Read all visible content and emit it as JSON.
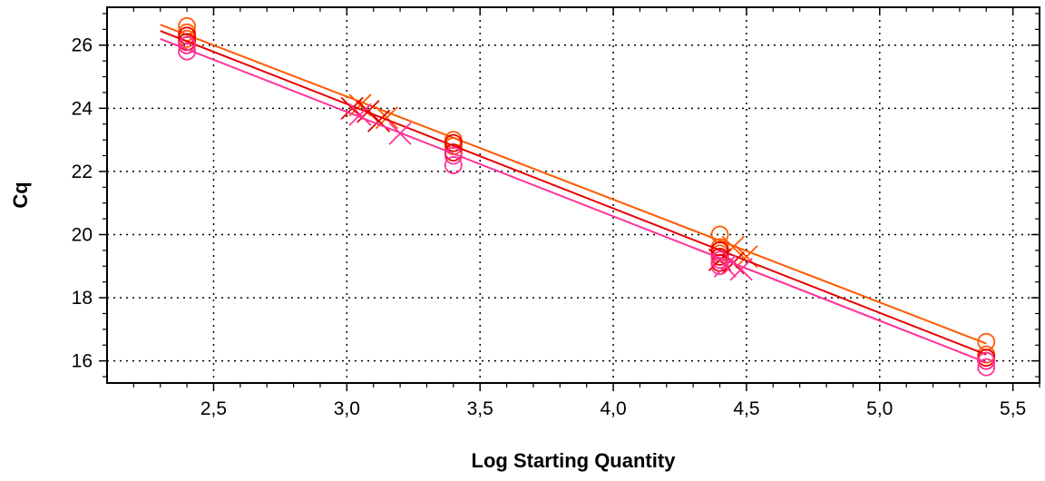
{
  "chart_data": {
    "type": "scatter",
    "title": "",
    "xlabel": "Log Starting Quantity",
    "ylabel": "Cq",
    "xlim": [
      2.1,
      5.6
    ],
    "ylim": [
      15.3,
      27.2
    ],
    "grid": true,
    "legend": "none",
    "x_ticks": [
      2.5,
      3.0,
      3.5,
      4.0,
      4.5,
      5.0,
      5.5
    ],
    "x_tick_labels": [
      "2,5",
      "3,0",
      "3,5",
      "4,0",
      "4,5",
      "5,0",
      "5,5"
    ],
    "y_ticks": [
      16,
      18,
      20,
      22,
      24,
      26
    ],
    "y_tick_labels": [
      "16",
      "18",
      "20",
      "22",
      "24",
      "26"
    ],
    "series": [
      {
        "color": "#ff5a00",
        "line": {
          "x": [
            2.3,
            5.4
          ],
          "y": [
            26.65,
            16.55
          ]
        },
        "standards": [
          [
            2.4,
            26.6
          ],
          [
            2.4,
            26.4
          ],
          [
            2.4,
            26.2
          ],
          [
            3.4,
            23.0
          ],
          [
            3.4,
            22.8
          ],
          [
            4.4,
            20.0
          ],
          [
            4.4,
            19.6
          ],
          [
            4.4,
            19.4
          ],
          [
            5.4,
            16.6
          ],
          [
            5.4,
            16.2
          ]
        ],
        "unknowns": [
          [
            3.05,
            24.1
          ],
          [
            3.15,
            23.7
          ],
          [
            4.45,
            19.6
          ],
          [
            4.5,
            19.3
          ]
        ]
      },
      {
        "color": "#e80000",
        "line": {
          "x": [
            2.3,
            5.4
          ],
          "y": [
            26.45,
            16.2
          ]
        },
        "standards": [
          [
            2.4,
            26.3
          ],
          [
            2.4,
            26.1
          ],
          [
            2.4,
            26.0
          ],
          [
            3.4,
            22.9
          ],
          [
            3.4,
            22.6
          ],
          [
            4.4,
            19.5
          ],
          [
            4.4,
            19.3
          ],
          [
            4.4,
            19.1
          ],
          [
            5.4,
            16.1
          ],
          [
            5.4,
            16.0
          ]
        ],
        "unknowns": [
          [
            3.02,
            24.0
          ],
          [
            3.08,
            23.9
          ],
          [
            3.12,
            23.6
          ],
          [
            4.4,
            19.2
          ],
          [
            4.45,
            19.1
          ]
        ]
      },
      {
        "color": "#ff3399",
        "line": {
          "x": [
            2.3,
            5.4
          ],
          "y": [
            26.2,
            15.95
          ]
        },
        "standards": [
          [
            2.4,
            26.0
          ],
          [
            2.4,
            25.8
          ],
          [
            3.4,
            22.5
          ],
          [
            3.4,
            22.2
          ],
          [
            4.4,
            19.2
          ],
          [
            4.4,
            19.0
          ],
          [
            5.4,
            16.0
          ],
          [
            5.4,
            15.8
          ]
        ],
        "unknowns": [
          [
            3.05,
            23.8
          ],
          [
            3.2,
            23.2
          ],
          [
            4.42,
            19.0
          ],
          [
            4.48,
            18.9
          ]
        ]
      }
    ]
  }
}
